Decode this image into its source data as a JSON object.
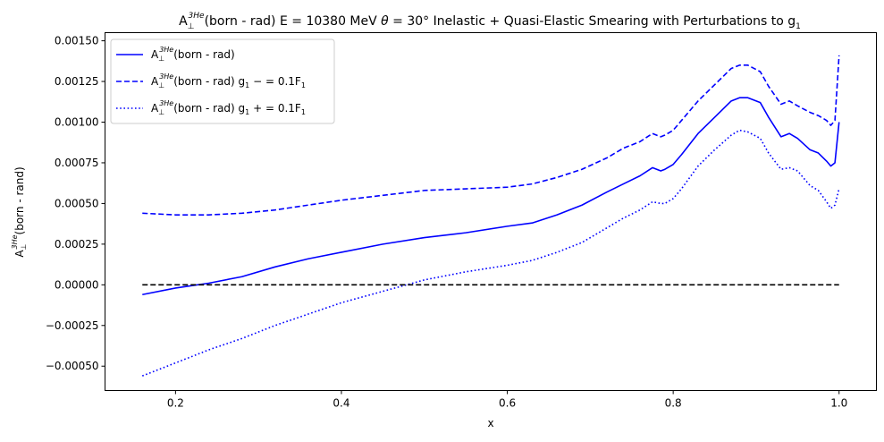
{
  "chart_data": {
    "type": "line",
    "title": {
      "sym": "A",
      "sub": "⊥",
      "sup": "3He",
      "text1": "(born - rad) E = 10380 MeV ",
      "theta": "θ",
      "text2": " = 30° Inelastic + Quasi-Elastic Smearing with Perturbations to g",
      "text2_sub": "1"
    },
    "xlabel": "x",
    "ylabel": {
      "sym": "A",
      "sub": "⊥",
      "sup": "3He",
      "rest": "(born - rand)"
    },
    "xlim": [
      0.115,
      1.045
    ],
    "ylim": [
      -0.00065,
      0.00155
    ],
    "xticks": [
      {
        "value": 0.2,
        "label": "0.2"
      },
      {
        "value": 0.4,
        "label": "0.4"
      },
      {
        "value": 0.6,
        "label": "0.6"
      },
      {
        "value": 0.8,
        "label": "0.8"
      },
      {
        "value": 1.0,
        "label": "1.0"
      }
    ],
    "yticks": [
      {
        "value": -0.0005,
        "label": "−0.00050"
      },
      {
        "value": -0.00025,
        "label": "−0.00025"
      },
      {
        "value": 0.0,
        "label": "0.00000"
      },
      {
        "value": 0.00025,
        "label": "0.00025"
      },
      {
        "value": 0.0005,
        "label": "0.00050"
      },
      {
        "value": 0.00075,
        "label": "0.00075"
      },
      {
        "value": 0.001,
        "label": "0.00100"
      },
      {
        "value": 0.00125,
        "label": "0.00125"
      },
      {
        "value": 0.0015,
        "label": "0.00150"
      }
    ],
    "legend_position": "upper-left",
    "series": [
      {
        "name": {
          "sym": "A",
          "sub": "⊥",
          "sup": "3He",
          "rest": "(born - rad)",
          "extra": ""
        },
        "color": "#0000ff",
        "style": "solid",
        "x": [
          0.16,
          0.2,
          0.24,
          0.28,
          0.32,
          0.36,
          0.4,
          0.45,
          0.5,
          0.55,
          0.6,
          0.63,
          0.66,
          0.69,
          0.72,
          0.74,
          0.76,
          0.775,
          0.785,
          0.79,
          0.8,
          0.81,
          0.83,
          0.85,
          0.87,
          0.88,
          0.89,
          0.905,
          0.915,
          0.93,
          0.94,
          0.95,
          0.965,
          0.975,
          0.985,
          0.99,
          0.995,
          1.0
        ],
        "y": [
          -6e-05,
          -2e-05,
          1e-05,
          5e-05,
          0.00011,
          0.00016,
          0.0002,
          0.00025,
          0.00029,
          0.00032,
          0.00036,
          0.00038,
          0.00043,
          0.00049,
          0.00057,
          0.00062,
          0.00067,
          0.00072,
          0.0007,
          0.00071,
          0.00074,
          0.0008,
          0.00093,
          0.00103,
          0.00113,
          0.00115,
          0.00115,
          0.00112,
          0.00103,
          0.00091,
          0.00093,
          0.0009,
          0.00083,
          0.00081,
          0.00076,
          0.00073,
          0.00075,
          0.001
        ]
      },
      {
        "name": {
          "sym": "A",
          "sub": "⊥",
          "sup": "3He",
          "rest": "(born - rad) g",
          "extra": "1"
        },
        "name_suffix": " − = 0.1F",
        "name_suffix_sub": "1",
        "color": "#0000ff",
        "style": "dashed",
        "x": [
          0.16,
          0.2,
          0.24,
          0.28,
          0.32,
          0.36,
          0.4,
          0.45,
          0.5,
          0.55,
          0.6,
          0.63,
          0.66,
          0.69,
          0.72,
          0.74,
          0.76,
          0.775,
          0.785,
          0.79,
          0.8,
          0.81,
          0.83,
          0.85,
          0.87,
          0.88,
          0.89,
          0.905,
          0.915,
          0.93,
          0.94,
          0.95,
          0.965,
          0.975,
          0.985,
          0.99,
          0.995,
          1.0
        ],
        "y": [
          0.00044,
          0.00043,
          0.00043,
          0.00044,
          0.00046,
          0.00049,
          0.00052,
          0.00055,
          0.00058,
          0.00059,
          0.0006,
          0.00062,
          0.00066,
          0.00071,
          0.00078,
          0.00084,
          0.00088,
          0.00093,
          0.00091,
          0.00092,
          0.00095,
          0.00101,
          0.00113,
          0.00123,
          0.00133,
          0.00135,
          0.00135,
          0.00131,
          0.00122,
          0.00111,
          0.00113,
          0.0011,
          0.00106,
          0.00104,
          0.00101,
          0.00098,
          0.00101,
          0.00141
        ]
      },
      {
        "name": {
          "sym": "A",
          "sub": "⊥",
          "sup": "3He",
          "rest": "(born - rad) g",
          "extra": "1"
        },
        "name_suffix": " + = 0.1F",
        "name_suffix_sub": "1",
        "color": "#0000ff",
        "style": "dotted",
        "x": [
          0.16,
          0.2,
          0.24,
          0.28,
          0.32,
          0.36,
          0.4,
          0.45,
          0.5,
          0.55,
          0.6,
          0.63,
          0.66,
          0.69,
          0.72,
          0.74,
          0.76,
          0.775,
          0.785,
          0.79,
          0.8,
          0.81,
          0.83,
          0.85,
          0.87,
          0.88,
          0.89,
          0.905,
          0.915,
          0.93,
          0.94,
          0.95,
          0.965,
          0.975,
          0.985,
          0.99,
          0.995,
          1.0
        ],
        "y": [
          -0.00056,
          -0.00048,
          -0.0004,
          -0.00033,
          -0.00025,
          -0.00018,
          -0.00011,
          -4e-05,
          3e-05,
          8e-05,
          0.00012,
          0.00015,
          0.0002,
          0.00026,
          0.00035,
          0.00041,
          0.00046,
          0.00051,
          0.0005,
          0.0005,
          0.00053,
          0.00059,
          0.00073,
          0.00083,
          0.00092,
          0.00095,
          0.00094,
          0.0009,
          0.00081,
          0.00071,
          0.00072,
          0.0007,
          0.00061,
          0.00058,
          0.00051,
          0.00047,
          0.00049,
          0.00059
        ]
      },
      {
        "name": null,
        "color": "#000000",
        "style": "dashed",
        "x": [
          0.16,
          1.0
        ],
        "y": [
          0.0,
          0.0
        ]
      }
    ]
  }
}
